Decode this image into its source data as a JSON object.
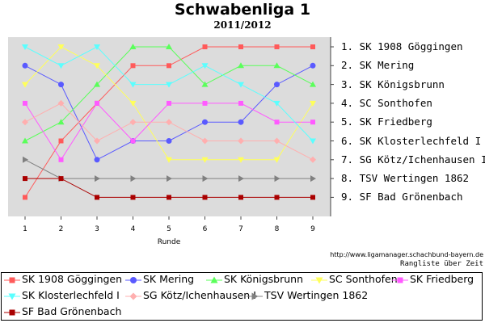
{
  "header": {
    "title": "Schwabenliga 1",
    "subtitle": "2011/2012"
  },
  "chart_data": {
    "type": "line",
    "xlabel": "Runde",
    "ylabel": "",
    "x": [
      1,
      2,
      3,
      4,
      5,
      6,
      7,
      8,
      9
    ],
    "ylim": [
      1,
      9
    ],
    "y_inverted": true,
    "grid": false,
    "y_tick_labels": [
      "1. SK 1908 Göggingen",
      "2. SK Mering",
      "3. SK Königsbrunn",
      "4. SC Sonthofen",
      "5. SK Friedberg",
      "6. SK Klosterlechfeld I",
      "7. SG Kötz/Ichenhausen I",
      "8. TSV Wertingen 1862",
      "9. SF Bad Grönenbach"
    ],
    "series": [
      {
        "name": "SK 1908 Göggingen",
        "color": "#ff5a5a",
        "marker": "square",
        "values": [
          9,
          6,
          4,
          2,
          2,
          1,
          1,
          1,
          1
        ]
      },
      {
        "name": "SK Mering",
        "color": "#5a5aff",
        "marker": "circle",
        "values": [
          2,
          3,
          7,
          6,
          6,
          5,
          5,
          3,
          2
        ]
      },
      {
        "name": "SK Königsbrunn",
        "color": "#5aff5a",
        "marker": "triangle-up",
        "values": [
          6,
          5,
          3,
          1,
          1,
          3,
          2,
          2,
          3
        ]
      },
      {
        "name": "SC Sonthofen",
        "color": "#ffff5a",
        "marker": "triangle-down",
        "values": [
          3,
          1,
          2,
          4,
          7,
          7,
          7,
          7,
          4
        ]
      },
      {
        "name": "SK Friedberg",
        "color": "#ff5aff",
        "marker": "square",
        "values": [
          4,
          7,
          4,
          6,
          4,
          4,
          4,
          5,
          5
        ]
      },
      {
        "name": "SK Klosterlechfeld I",
        "color": "#5affff",
        "marker": "triangle-down",
        "values": [
          1,
          2,
          1,
          3,
          3,
          2,
          3,
          4,
          6
        ]
      },
      {
        "name": "SG Kötz/Ichenhausen I",
        "color": "#ffafaf",
        "marker": "diamond",
        "values": [
          5,
          4,
          6,
          5,
          5,
          6,
          6,
          6,
          7
        ]
      },
      {
        "name": "TSV Wertingen 1862",
        "color": "#808080",
        "marker": "triangle-right",
        "values": [
          7,
          8,
          8,
          8,
          8,
          8,
          8,
          8,
          8
        ]
      },
      {
        "name": "SF Bad Grönenbach",
        "color": "#aa0000",
        "marker": "square",
        "values": [
          8,
          8,
          9,
          9,
          9,
          9,
          9,
          9,
          9
        ]
      }
    ],
    "legend_position": "bottom"
  },
  "source": "http://www.ligamanager.schachbund-bayern.de",
  "footer": "Rangliste über Zeit",
  "colors": {
    "plot_background": "#dcdcdc"
  }
}
